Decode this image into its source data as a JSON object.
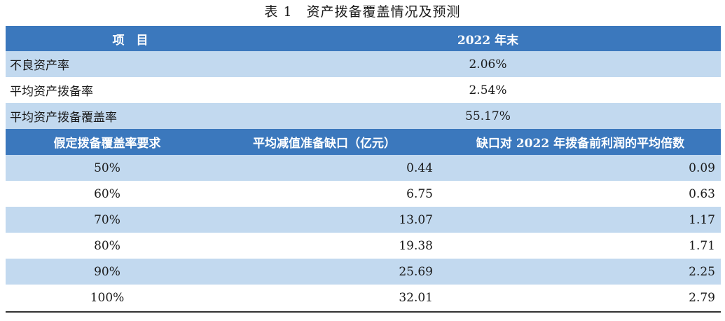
{
  "table": {
    "caption": "表 1　资产拨备覆盖情况及预测",
    "top_header": {
      "item_label": "项　目",
      "value_label": "2022 年末"
    },
    "top_rows": [
      {
        "label": "不良资产率",
        "value": "2.06%"
      },
      {
        "label": "平均资产拨备率",
        "value": "2.54%"
      },
      {
        "label": "平均资产拨备覆盖率",
        "value": "55.17%"
      }
    ],
    "bottom_header": {
      "col1": "假定拨备覆盖率要求",
      "col2": "平均减值准备缺口（亿元）",
      "col3": "缺口对 2022 年拨备前利润的平均倍数"
    },
    "bottom_rows": [
      {
        "req": "50%",
        "gap": "0.44",
        "multiple": "0.09"
      },
      {
        "req": "60%",
        "gap": "6.75",
        "multiple": "0.63"
      },
      {
        "req": "70%",
        "gap": "13.07",
        "multiple": "1.17"
      },
      {
        "req": "80%",
        "gap": "19.38",
        "multiple": "1.71"
      },
      {
        "req": "90%",
        "gap": "25.69",
        "multiple": "2.25"
      },
      {
        "req": "100%",
        "gap": "32.01",
        "multiple": "2.79"
      }
    ],
    "colors": {
      "header_bg": "#3b78bd",
      "band_bg": "#c2d9ef",
      "plain_bg": "#ffffff"
    }
  }
}
